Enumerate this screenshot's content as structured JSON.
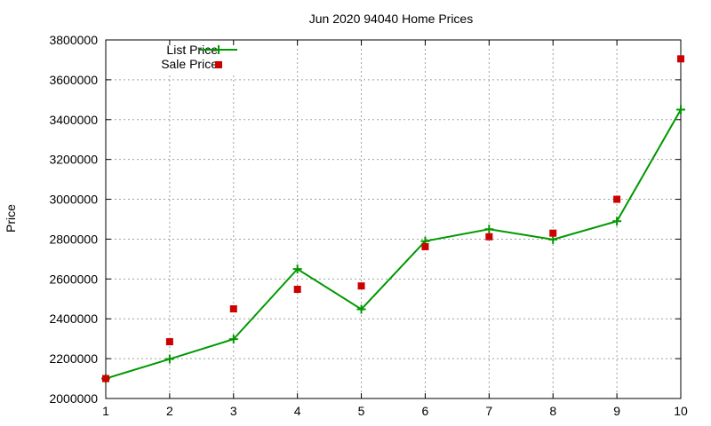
{
  "chart_data": {
    "type": "line",
    "title": "Jun 2020 94040 Home Prices",
    "xlabel": "",
    "ylabel": "Price",
    "x": [
      1,
      2,
      3,
      4,
      5,
      6,
      7,
      8,
      9,
      10
    ],
    "xlim": [
      1,
      10
    ],
    "ylim": [
      2000000,
      3800000
    ],
    "xticks": [
      "1",
      "2",
      "3",
      "4",
      "5",
      "6",
      "7",
      "8",
      "9",
      "10"
    ],
    "yticks": [
      "2000000",
      "2200000",
      "2400000",
      "2600000",
      "2800000",
      "3000000",
      "3200000",
      "3400000",
      "3600000",
      "3800000"
    ],
    "grid": true,
    "legend_position": "top-left",
    "series": [
      {
        "name": "List Price",
        "style": "line-points",
        "color": "#009900",
        "marker": "plus",
        "values": [
          2100000,
          2198000,
          2298000,
          2650000,
          2448000,
          2790000,
          2850000,
          2798000,
          2890000,
          3450000
        ]
      },
      {
        "name": "Sale Price",
        "style": "points",
        "color": "#cc0000",
        "marker": "square",
        "values": [
          2100000,
          2285000,
          2450000,
          2548000,
          2565000,
          2762000,
          2812000,
          2830000,
          3000000,
          3705000
        ]
      }
    ]
  }
}
